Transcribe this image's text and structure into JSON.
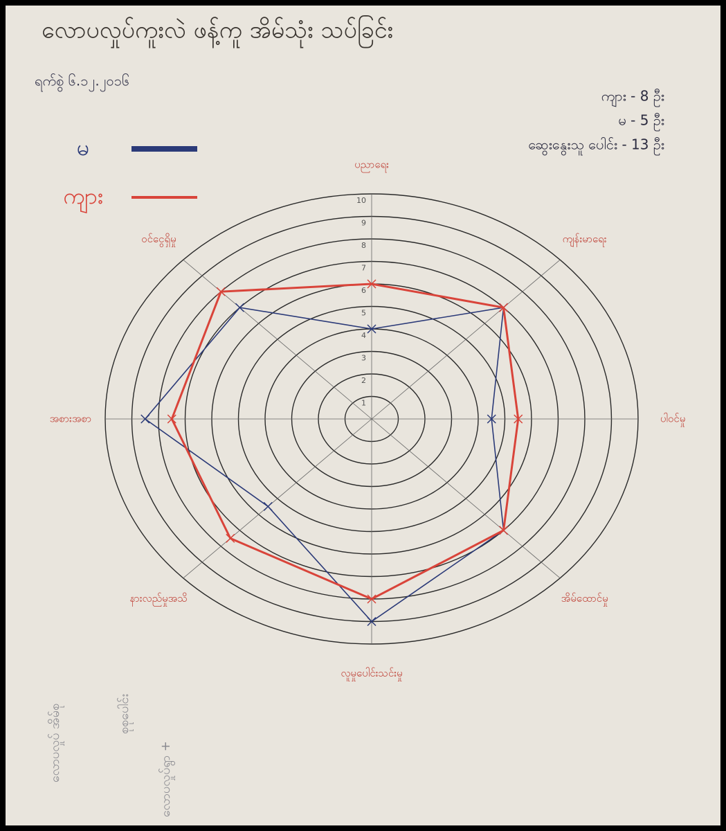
{
  "chart_data": {
    "type": "radar",
    "title": "လောပလှုပ်ကူးလဲ ဖန့်ကူ အိမ်သုံး သပ်ခြင်း",
    "subtitle": "ရက်စွဲ ၆.၁၂.၂၀၁၆",
    "annotations": [
      "ကျား - 8 ဦး",
      "မ - 5 ဦး",
      "ဆွေးနွေးသူ ပေါင်း - 13 ဦး"
    ],
    "notes": [
      "လောပလှုပ် အိမ်စု",
      "စုစုပေါင်း",
      "လောပလှုပ်ရွာ +"
    ],
    "categories": [
      "ပညာရေး",
      "ကျန်းမာရေး",
      "ပါဝင်မှု",
      "အိမ်ထောင်မှု",
      "လူမှုပေါင်းသင်းမှု",
      "နားလည်မှုအသိ",
      "အစားအစာ",
      "ဝင်ငွေရှိမှု"
    ],
    "series": [
      {
        "name": "မ",
        "color": "#2b3a78",
        "values": [
          4,
          7,
          4.5,
          7,
          9,
          5.5,
          8.5,
          7
        ]
      },
      {
        "name": "ကျား",
        "color": "#d9443a",
        "values": [
          6,
          7,
          5.5,
          7,
          8,
          7.5,
          7.5,
          8
        ]
      }
    ],
    "rlim": [
      0,
      10
    ],
    "rticks": [
      1,
      2,
      3,
      4,
      5,
      6,
      7,
      8,
      9,
      10
    ]
  }
}
